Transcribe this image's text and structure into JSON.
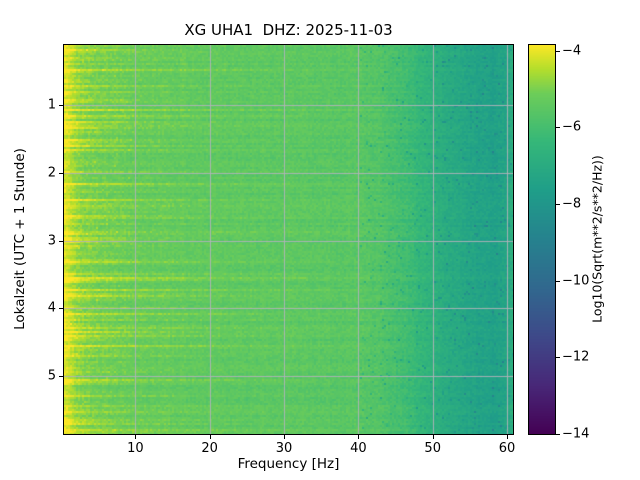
{
  "chart_data": {
    "type": "heatmap",
    "title": "XG UHA1  DHZ: 2025-11-03",
    "xlabel": "Frequency [Hz]",
    "ylabel": "Lokalzeit (UTC + 1 Stunde)",
    "colorbar_label": "Log10(Sqrt(m**2/s**2/Hz))",
    "xlim": [
      0.4,
      60.8
    ],
    "ylim": [
      0.12,
      5.85
    ],
    "x_ticks": [
      10,
      20,
      30,
      40,
      50,
      60
    ],
    "x_tick_labels": [
      "10",
      "20",
      "30",
      "40",
      "50",
      "60"
    ],
    "y_ticks": [
      1,
      2,
      3,
      4,
      5
    ],
    "y_tick_labels": [
      "1",
      "2",
      "3",
      "4",
      "5"
    ],
    "grid": true,
    "grid_color": "rgba(178,178,186,0.9)",
    "vmin": -14,
    "vmax": -3.85,
    "colorbar_ticks": [
      -4,
      -6,
      -8,
      -10,
      -12,
      -14
    ],
    "colorbar_tick_labels": [
      "−4",
      "−6",
      "−8",
      "−10",
      "−12",
      "−14"
    ],
    "colormap": "viridis",
    "colormap_stops": [
      [
        0.0,
        "#440154"
      ],
      [
        0.125,
        "#482878"
      ],
      [
        0.25,
        "#3e4989"
      ],
      [
        0.375,
        "#31688e"
      ],
      [
        0.5,
        "#26828e"
      ],
      [
        0.625,
        "#1f9e89"
      ],
      [
        0.75,
        "#35b779"
      ],
      [
        0.875,
        "#6dcd59"
      ],
      [
        0.9375,
        "#b4de2c"
      ],
      [
        1.0,
        "#fde725"
      ]
    ],
    "freq_profile": {
      "freqs": [
        0.4,
        0.8,
        1.5,
        2.5,
        4.0,
        6.0,
        10.0,
        15.0,
        20.0,
        25.0,
        30.0,
        35.0,
        40.0,
        43.0,
        46.0,
        49.0,
        52.0,
        55.0,
        58.0,
        60.0,
        60.8
      ],
      "mean_log10": [
        -4.3,
        -4.45,
        -4.7,
        -5.0,
        -5.15,
        -5.25,
        -5.35,
        -5.4,
        -5.45,
        -5.5,
        -5.5,
        -5.55,
        -5.6,
        -5.75,
        -6.1,
        -6.6,
        -7.05,
        -7.35,
        -7.55,
        -7.3,
        -6.7
      ]
    },
    "noise": {
      "seed": 20251103,
      "cell_noise": 0.24,
      "row_offset": 0.12,
      "burst_amp": 1.15,
      "burst_power": 3,
      "burst_reach_min": 5,
      "burst_reach_span": 22,
      "col_offset": 0.05,
      "dark_speckle_p": 0.045,
      "dark_speckle_amp": 1.4,
      "dark_speckle_fmin": 40,
      "bright_speckle_p": 0.05,
      "bright_speckle_amp": 0.35,
      "bright_speckle_fmax": 10
    }
  }
}
